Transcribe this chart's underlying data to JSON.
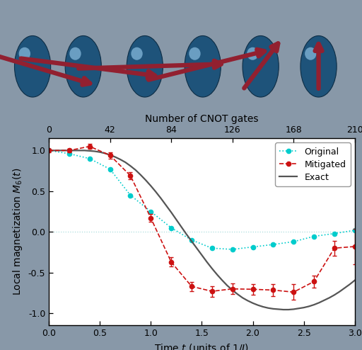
{
  "title_top": "Number of CNOT gates",
  "xlabel": "Time $t$ (units of 1/$J$)",
  "ylabel": "Local magnetization $M_6(t)$",
  "xlim": [
    0.0,
    3.0
  ],
  "ylim": [
    -1.15,
    1.15
  ],
  "xticks_bottom": [
    0.0,
    0.5,
    1.0,
    1.5,
    2.0,
    2.5,
    3.0
  ],
  "xticks_top": [
    0,
    42,
    84,
    126,
    168,
    210
  ],
  "xticks_top_pos": [
    0.0,
    0.6,
    1.2,
    1.8,
    2.4,
    3.0
  ],
  "yticks": [
    -1.0,
    -0.5,
    0.0,
    0.5,
    1.0
  ],
  "exact_color": "#555555",
  "mitigated_color": "#cc1111",
  "original_color": "#00cccc",
  "zero_line_color": "#aadddd",
  "background_top": "#8898a8",
  "background_plot": "#ffffff",
  "exact_x": [
    0.0,
    0.05,
    0.1,
    0.15,
    0.2,
    0.25,
    0.3,
    0.35,
    0.4,
    0.45,
    0.5,
    0.55,
    0.6,
    0.65,
    0.7,
    0.75,
    0.8,
    0.85,
    0.9,
    0.95,
    1.0,
    1.05,
    1.1,
    1.15,
    1.2,
    1.25,
    1.3,
    1.35,
    1.4,
    1.45,
    1.5,
    1.55,
    1.6,
    1.65,
    1.7,
    1.75,
    1.8,
    1.85,
    1.9,
    1.95,
    2.0,
    2.05,
    2.1,
    2.15,
    2.2,
    2.25,
    2.3,
    2.35,
    2.4,
    2.45,
    2.5,
    2.55,
    2.6,
    2.65,
    2.7,
    2.75,
    2.8,
    2.85,
    2.9,
    2.95,
    3.0
  ],
  "exact_y": [
    1.0,
    1.0,
    1.0,
    1.0,
    1.0,
    1.0,
    1.0,
    1.0,
    0.995,
    0.99,
    0.98,
    0.965,
    0.945,
    0.92,
    0.89,
    0.855,
    0.81,
    0.76,
    0.7,
    0.635,
    0.565,
    0.49,
    0.41,
    0.325,
    0.24,
    0.15,
    0.06,
    -0.03,
    -0.115,
    -0.2,
    -0.285,
    -0.37,
    -0.45,
    -0.525,
    -0.595,
    -0.66,
    -0.715,
    -0.765,
    -0.81,
    -0.845,
    -0.875,
    -0.9,
    -0.92,
    -0.935,
    -0.945,
    -0.95,
    -0.955,
    -0.955,
    -0.95,
    -0.94,
    -0.93,
    -0.915,
    -0.895,
    -0.87,
    -0.84,
    -0.81,
    -0.775,
    -0.735,
    -0.69,
    -0.645,
    -0.595
  ],
  "original_x": [
    0.0,
    0.2,
    0.4,
    0.6,
    0.8,
    1.0,
    1.2,
    1.4,
    1.6,
    1.8,
    2.0,
    2.2,
    2.4,
    2.6,
    2.8,
    3.0
  ],
  "original_y": [
    1.0,
    0.96,
    0.9,
    0.77,
    0.45,
    0.25,
    0.05,
    -0.1,
    -0.2,
    -0.215,
    -0.185,
    -0.155,
    -0.12,
    -0.055,
    -0.02,
    0.02
  ],
  "mitigated_x": [
    0.0,
    0.2,
    0.4,
    0.6,
    0.8,
    1.0,
    1.2,
    1.4,
    1.6,
    1.8,
    2.0,
    2.2,
    2.4,
    2.6,
    2.8,
    3.0
  ],
  "mitigated_y": [
    1.0,
    1.0,
    1.05,
    0.94,
    0.69,
    0.17,
    -0.37,
    -0.67,
    -0.73,
    -0.7,
    -0.705,
    -0.715,
    -0.74,
    -0.61,
    -0.2,
    -0.18
  ],
  "mitigated_err": [
    0.02,
    0.02,
    0.03,
    0.04,
    0.04,
    0.05,
    0.055,
    0.055,
    0.065,
    0.065,
    0.065,
    0.075,
    0.095,
    0.075,
    0.09,
    0.22
  ],
  "legend_labels": [
    "Original",
    "Mitigated",
    "Exact"
  ],
  "fontsize_labels": 10,
  "fontsize_ticks": 9,
  "spin_positions_x": [
    0.09,
    0.23,
    0.4,
    0.56,
    0.72,
    0.88
  ],
  "spin_angles_deg": [
    130,
    110,
    85,
    55,
    15,
    0
  ],
  "sphere_color": "#1e537a",
  "sphere_edge_color": "#0d2d45",
  "arrow_color": "#922030",
  "highlight_color": "#aaddff"
}
